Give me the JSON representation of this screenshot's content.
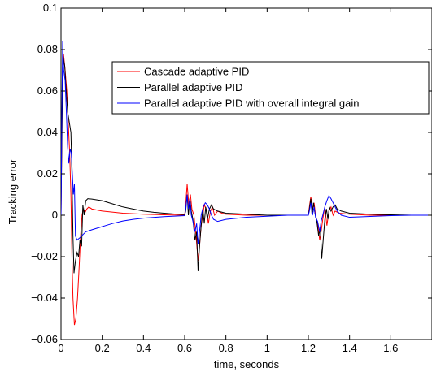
{
  "chart_data": {
    "type": "line",
    "title": "",
    "xlabel": "time, seconds",
    "ylabel": "Tracking error",
    "xlim": [
      0,
      1.8
    ],
    "ylim": [
      -0.06,
      0.1
    ],
    "xticks": [
      0,
      0.2,
      0.4,
      0.6,
      0.8,
      1.0,
      1.2,
      1.4,
      1.6
    ],
    "xtick_labels": [
      "0",
      "0.2",
      "0.4",
      "0.6",
      "0.8",
      "1",
      "1.2",
      "1.4",
      "1.6"
    ],
    "yticks": [
      -0.06,
      -0.04,
      -0.02,
      0,
      0.02,
      0.04,
      0.06,
      0.08,
      0.1
    ],
    "ytick_labels": [
      "−0.06",
      "−0.04",
      "−0.02",
      "0",
      "0.02",
      "0.04",
      "0.06",
      "0.08",
      "0.1"
    ],
    "grid": false,
    "legend_position": "top-right",
    "series": [
      {
        "name": "Cascade adaptive PID",
        "color": "#ff0000",
        "points": [
          [
            0,
            0
          ],
          [
            0.005,
            0.05
          ],
          [
            0.012,
            0.078
          ],
          [
            0.02,
            0.07
          ],
          [
            0.028,
            0.06
          ],
          [
            0.035,
            0.045
          ],
          [
            0.042,
            0.03
          ],
          [
            0.048,
            0.01
          ],
          [
            0.053,
            -0.02
          ],
          [
            0.058,
            -0.04
          ],
          [
            0.065,
            -0.053
          ],
          [
            0.072,
            -0.05
          ],
          [
            0.08,
            -0.04
          ],
          [
            0.088,
            -0.025
          ],
          [
            0.095,
            -0.01
          ],
          [
            0.102,
            0.0
          ],
          [
            0.108,
            0.003
          ],
          [
            0.115,
            0.001
          ],
          [
            0.125,
            0.003
          ],
          [
            0.135,
            0.004
          ],
          [
            0.15,
            0.003
          ],
          [
            0.2,
            0.002
          ],
          [
            0.3,
            0.001
          ],
          [
            0.4,
            0.0005
          ],
          [
            0.5,
            0.0002
          ],
          [
            0.6,
            0.0
          ],
          [
            0.605,
            0.005
          ],
          [
            0.612,
            0.015
          ],
          [
            0.62,
            0.005
          ],
          [
            0.628,
            0.01
          ],
          [
            0.635,
            0.003
          ],
          [
            0.645,
            0.0
          ],
          [
            0.655,
            -0.01
          ],
          [
            0.665,
            -0.022
          ],
          [
            0.672,
            -0.015
          ],
          [
            0.68,
            -0.005
          ],
          [
            0.688,
            0.0
          ],
          [
            0.695,
            0.005
          ],
          [
            0.705,
            0.003
          ],
          [
            0.715,
            -0.004
          ],
          [
            0.725,
            0.002
          ],
          [
            0.735,
            0.004
          ],
          [
            0.745,
            0.0
          ],
          [
            0.76,
            0.002
          ],
          [
            0.78,
            0.001
          ],
          [
            0.8,
            0.0005
          ],
          [
            0.9,
            0.0
          ],
          [
            1.0,
            0.0
          ],
          [
            1.1,
            0.0
          ],
          [
            1.2,
            0.0
          ],
          [
            1.205,
            0.004
          ],
          [
            1.212,
            0.009
          ],
          [
            1.22,
            0.003
          ],
          [
            1.228,
            0.006
          ],
          [
            1.235,
            0.0
          ],
          [
            1.245,
            -0.004
          ],
          [
            1.255,
            -0.012
          ],
          [
            1.262,
            -0.008
          ],
          [
            1.27,
            -0.002
          ],
          [
            1.28,
            0.004
          ],
          [
            1.29,
            -0.005
          ],
          [
            1.3,
            0.002
          ],
          [
            1.31,
            0.004
          ],
          [
            1.32,
            0.0
          ],
          [
            1.33,
            0.002
          ],
          [
            1.35,
            0.001
          ],
          [
            1.4,
            0.0005
          ],
          [
            1.5,
            0.0
          ],
          [
            1.6,
            0.0
          ],
          [
            1.7,
            0.0
          ],
          [
            1.8,
            0.0
          ]
        ]
      },
      {
        "name": "Parallel adaptive PID",
        "color": "#000000",
        "points": [
          [
            0,
            0
          ],
          [
            0.005,
            0.045
          ],
          [
            0.01,
            0.077
          ],
          [
            0.018,
            0.072
          ],
          [
            0.025,
            0.06
          ],
          [
            0.032,
            0.05
          ],
          [
            0.04,
            0.045
          ],
          [
            0.048,
            0.04
          ],
          [
            0.053,
            0.02
          ],
          [
            0.058,
            -0.01
          ],
          [
            0.063,
            -0.028
          ],
          [
            0.07,
            -0.022
          ],
          [
            0.078,
            -0.018
          ],
          [
            0.085,
            -0.02
          ],
          [
            0.092,
            -0.012
          ],
          [
            0.1,
            -0.015
          ],
          [
            0.106,
            0.005
          ],
          [
            0.112,
            0.0
          ],
          [
            0.12,
            0.007
          ],
          [
            0.13,
            0.008
          ],
          [
            0.15,
            0.0078
          ],
          [
            0.2,
            0.007
          ],
          [
            0.25,
            0.0055
          ],
          [
            0.3,
            0.004
          ],
          [
            0.35,
            0.003
          ],
          [
            0.4,
            0.002
          ],
          [
            0.45,
            0.0014
          ],
          [
            0.5,
            0.001
          ],
          [
            0.55,
            0.0006
          ],
          [
            0.6,
            0.0003
          ],
          [
            0.605,
            0.002
          ],
          [
            0.612,
            0.01
          ],
          [
            0.618,
            0.0
          ],
          [
            0.625,
            0.008
          ],
          [
            0.632,
            0.002
          ],
          [
            0.64,
            -0.002
          ],
          [
            0.65,
            -0.012
          ],
          [
            0.658,
            -0.008
          ],
          [
            0.665,
            -0.027
          ],
          [
            0.672,
            -0.015
          ],
          [
            0.68,
            -0.005
          ],
          [
            0.688,
            0.003
          ],
          [
            0.695,
            -0.004
          ],
          [
            0.702,
            0.004
          ],
          [
            0.71,
            -0.002
          ],
          [
            0.72,
            0.003
          ],
          [
            0.73,
            0.005
          ],
          [
            0.74,
            0.003
          ],
          [
            0.76,
            0.002
          ],
          [
            0.8,
            0.001
          ],
          [
            0.9,
            0.0005
          ],
          [
            1.0,
            0.0
          ],
          [
            1.1,
            0.0
          ],
          [
            1.2,
            0.0
          ],
          [
            1.205,
            0.003
          ],
          [
            1.212,
            0.008
          ],
          [
            1.218,
            0.0
          ],
          [
            1.225,
            0.006
          ],
          [
            1.232,
            0.001
          ],
          [
            1.24,
            -0.002
          ],
          [
            1.25,
            -0.01
          ],
          [
            1.258,
            -0.006
          ],
          [
            1.265,
            -0.021
          ],
          [
            1.272,
            -0.012
          ],
          [
            1.28,
            -0.002
          ],
          [
            1.288,
            0.003
          ],
          [
            1.295,
            -0.002
          ],
          [
            1.302,
            0.004
          ],
          [
            1.31,
            0.002
          ],
          [
            1.32,
            0.004
          ],
          [
            1.33,
            0.005
          ],
          [
            1.34,
            0.003
          ],
          [
            1.36,
            0.002
          ],
          [
            1.4,
            0.001
          ],
          [
            1.5,
            0.0005
          ],
          [
            1.6,
            0.0002
          ],
          [
            1.7,
            0.0
          ],
          [
            1.8,
            0.0
          ]
        ]
      },
      {
        "name": "Parallel adaptive PID with overall integral gain",
        "color": "#0000ff",
        "points": [
          [
            0,
            0
          ],
          [
            0.004,
            0.05
          ],
          [
            0.008,
            0.084
          ],
          [
            0.013,
            0.07
          ],
          [
            0.02,
            0.065
          ],
          [
            0.026,
            0.05
          ],
          [
            0.032,
            0.033
          ],
          [
            0.038,
            0.025
          ],
          [
            0.044,
            0.032
          ],
          [
            0.05,
            0.03
          ],
          [
            0.055,
            0.02
          ],
          [
            0.06,
            0.01
          ],
          [
            0.065,
            0.015
          ],
          [
            0.07,
            -0.01
          ],
          [
            0.078,
            -0.012
          ],
          [
            0.09,
            -0.011
          ],
          [
            0.1,
            -0.01
          ],
          [
            0.11,
            -0.009
          ],
          [
            0.12,
            -0.008
          ],
          [
            0.15,
            -0.007
          ],
          [
            0.2,
            -0.0055
          ],
          [
            0.25,
            -0.004
          ],
          [
            0.3,
            -0.0028
          ],
          [
            0.35,
            -0.002
          ],
          [
            0.4,
            -0.0014
          ],
          [
            0.5,
            -0.0007
          ],
          [
            0.6,
            -0.0002
          ],
          [
            0.605,
            0.003
          ],
          [
            0.612,
            0.01
          ],
          [
            0.618,
            0.003
          ],
          [
            0.625,
            0.008
          ],
          [
            0.632,
            0.0
          ],
          [
            0.64,
            -0.003
          ],
          [
            0.65,
            -0.008
          ],
          [
            0.658,
            -0.004
          ],
          [
            0.665,
            -0.014
          ],
          [
            0.672,
            -0.008
          ],
          [
            0.68,
            0.0
          ],
          [
            0.69,
            0.004
          ],
          [
            0.7,
            0.006
          ],
          [
            0.71,
            0.005
          ],
          [
            0.72,
            0.003
          ],
          [
            0.73,
            0.0
          ],
          [
            0.74,
            -0.002
          ],
          [
            0.76,
            -0.003
          ],
          [
            0.8,
            -0.002
          ],
          [
            0.9,
            -0.001
          ],
          [
            1.0,
            -0.0005
          ],
          [
            1.1,
            0.0
          ],
          [
            1.2,
            0.0
          ],
          [
            1.205,
            0.002
          ],
          [
            1.212,
            0.006
          ],
          [
            1.22,
            0.0
          ],
          [
            1.228,
            0.004
          ],
          [
            1.235,
            -0.001
          ],
          [
            1.245,
            -0.003
          ],
          [
            1.255,
            -0.008
          ],
          [
            1.262,
            -0.003
          ],
          [
            1.27,
            0.0
          ],
          [
            1.28,
            0.004
          ],
          [
            1.29,
            0.007
          ],
          [
            1.3,
            0.0095
          ],
          [
            1.31,
            0.008
          ],
          [
            1.32,
            0.006
          ],
          [
            1.33,
            0.004
          ],
          [
            1.34,
            0.002
          ],
          [
            1.36,
            0.0
          ],
          [
            1.4,
            -0.001
          ],
          [
            1.5,
            -0.0006
          ],
          [
            1.6,
            -0.0002
          ],
          [
            1.7,
            0.0
          ],
          [
            1.8,
            0.0
          ]
        ]
      }
    ]
  }
}
